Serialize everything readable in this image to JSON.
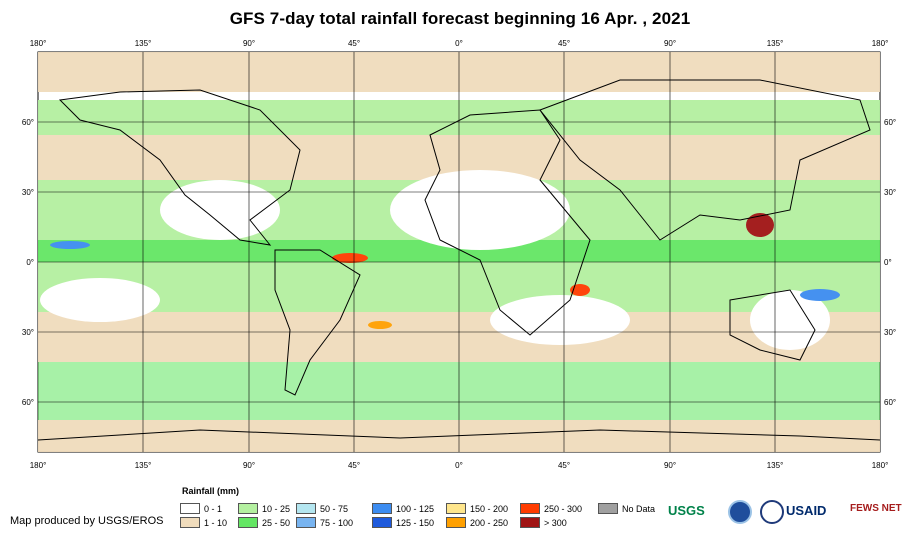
{
  "title": "GFS 7-day total rainfall forecast beginning 16 Apr. , 2021",
  "lon_labels": [
    "180°",
    "135°",
    "90°",
    "45°",
    "0°",
    "45°",
    "90°",
    "135°",
    "180°"
  ],
  "lat_labels": [
    "60°",
    "30°",
    "0°",
    "30°",
    "60°"
  ],
  "legend": {
    "title": "Rainfall (mm)",
    "items": [
      {
        "label": "0 - 1",
        "color": "#ffffff"
      },
      {
        "label": "1 - 10",
        "color": "#f0dcbc"
      },
      {
        "label": "10 - 25",
        "color": "#b4f0a0"
      },
      {
        "label": "25 - 50",
        "color": "#64e664"
      },
      {
        "label": "50 - 75",
        "color": "#b4e6f0"
      },
      {
        "label": "75 - 100",
        "color": "#78b4f0"
      },
      {
        "label": "100 - 125",
        "color": "#3c8cf0"
      },
      {
        "label": "125 - 150",
        "color": "#1e5adc"
      },
      {
        "label": "150 - 200",
        "color": "#ffe68c"
      },
      {
        "label": "200 - 250",
        "color": "#ffa000"
      },
      {
        "label": "250 - 300",
        "color": "#ff3c00"
      },
      {
        "label": "> 300",
        "color": "#a01414"
      },
      {
        "label": "No Data",
        "color": "#a0a0a0"
      }
    ]
  },
  "credit": "Map produced by USGS/EROS",
  "logos": {
    "usgs": "USGS",
    "usaid": "USAID",
    "fews": "FEWS NET"
  }
}
